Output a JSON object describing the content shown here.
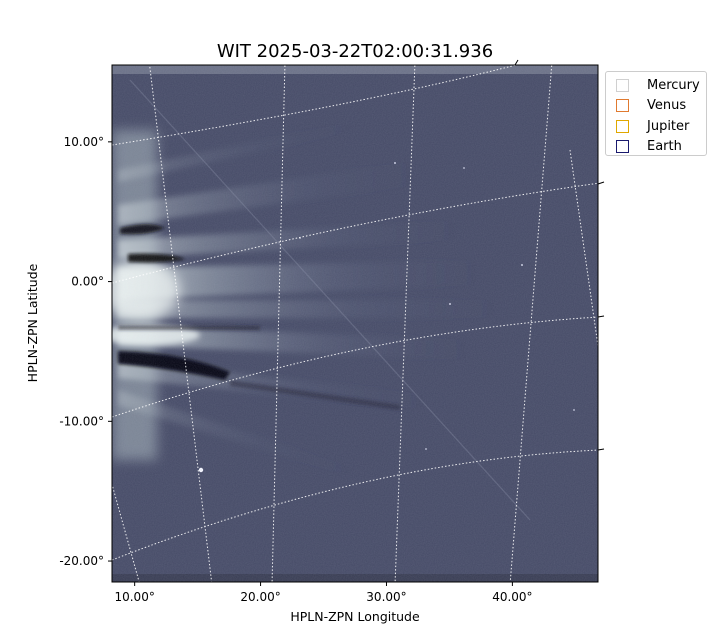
{
  "chart_data": {
    "type": "image",
    "title": "WIT 2025-03-22T02:00:31.936",
    "xlabel": "HPLN-ZPN Longitude",
    "ylabel": "HPLN-ZPN Latitude",
    "x_ticks": [
      "10.00°",
      "20.00°",
      "30.00°",
      "40.00°"
    ],
    "y_ticks": [
      "10.00°",
      "0.00°",
      "-10.00°",
      "-20.00°"
    ],
    "x_tick_values": [
      10,
      20,
      30,
      40
    ],
    "y_tick_values": [
      10,
      0,
      -10,
      -20
    ],
    "xlim": [
      8.2,
      46.8
    ],
    "ylim": [
      -21.5,
      15.5
    ],
    "grid": "on",
    "legend_position": "upper-right-outside",
    "colormap": "bone"
  },
  "legend": {
    "items": [
      {
        "label": "Mercury",
        "color": "#d0d0d0"
      },
      {
        "label": "Venus",
        "color": "#e07a30"
      },
      {
        "label": "Jupiter",
        "color": "#e0a800"
      },
      {
        "label": "Earth",
        "color": "#1a1a6e"
      }
    ]
  }
}
